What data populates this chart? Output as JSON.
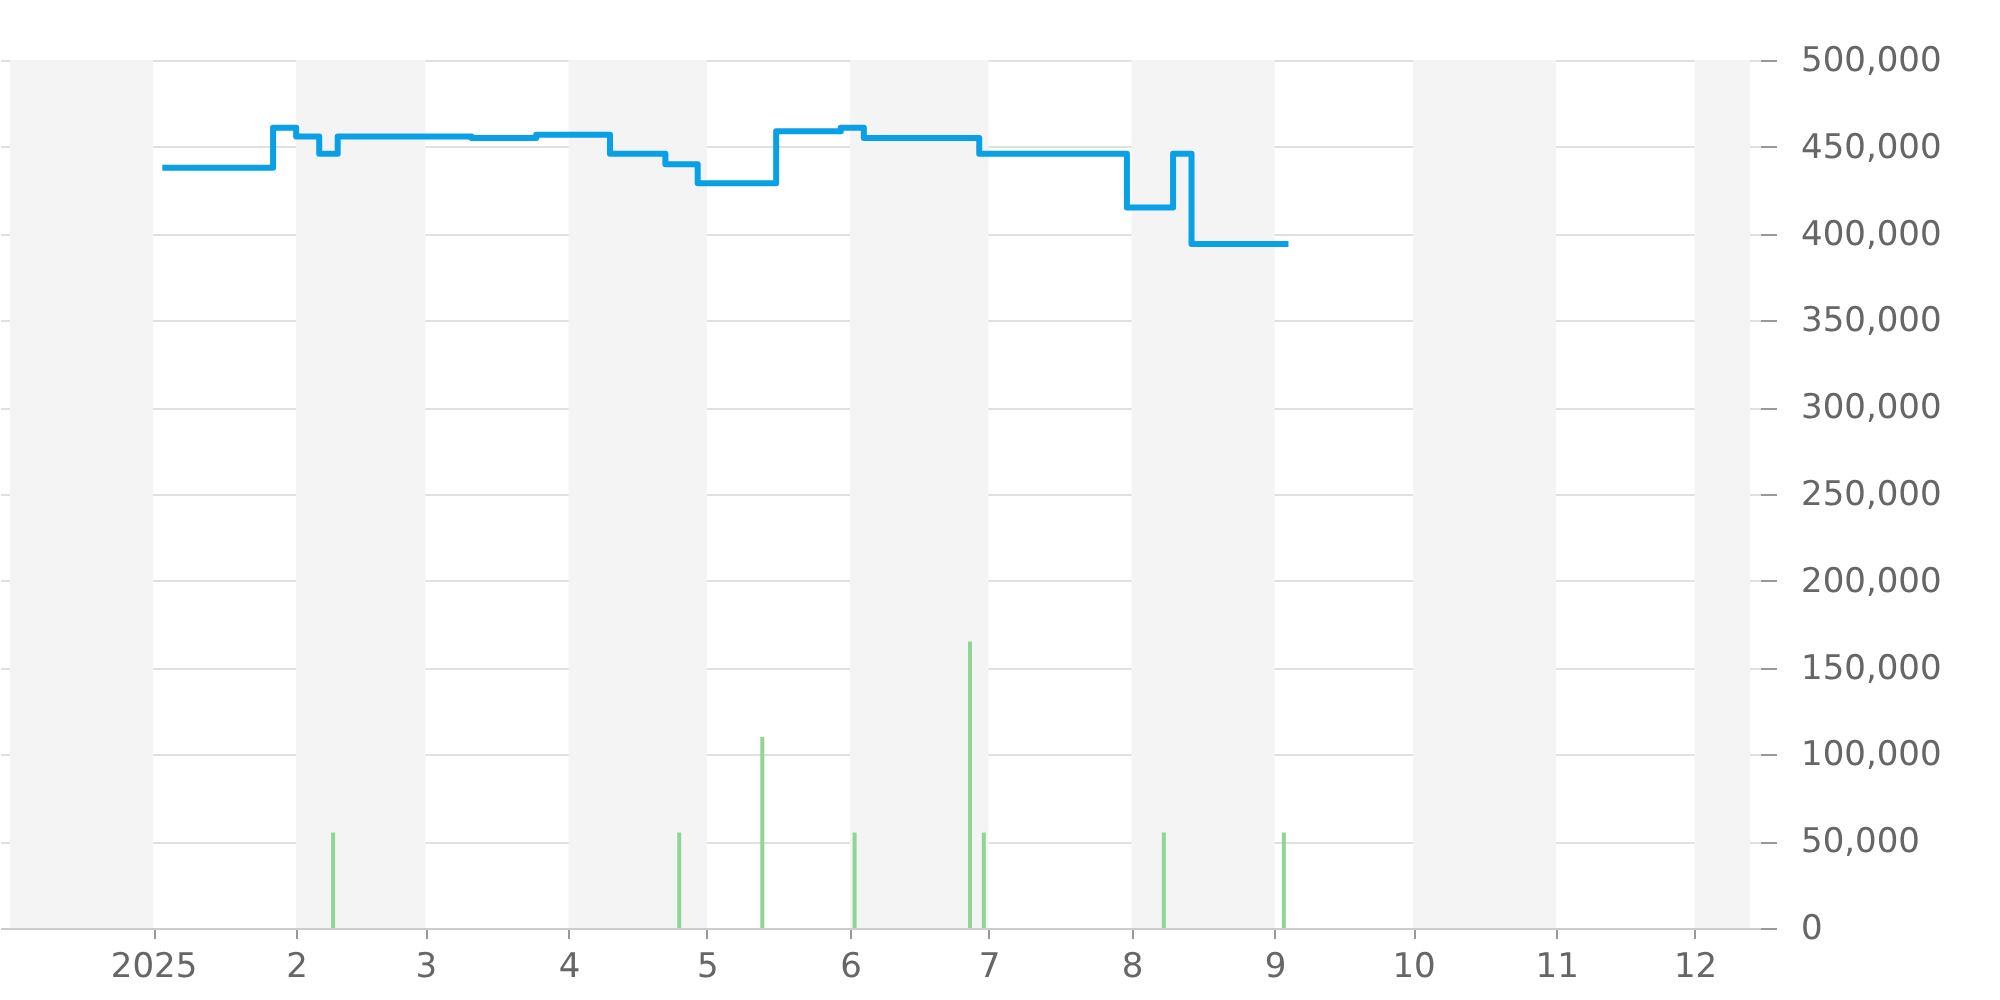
{
  "chart_data": {
    "type": "step",
    "xlim": [
      "2024-12-01",
      "2025-12-13"
    ],
    "xticks": [
      {
        "value": "2025-01-01",
        "label": "2025"
      },
      {
        "value": "2025-02-01",
        "label": "2"
      },
      {
        "value": "2025-03-01",
        "label": "3"
      },
      {
        "value": "2025-04-01",
        "label": "4"
      },
      {
        "value": "2025-05-01",
        "label": "5"
      },
      {
        "value": "2025-06-01",
        "label": "6"
      },
      {
        "value": "2025-07-01",
        "label": "7"
      },
      {
        "value": "2025-08-01",
        "label": "8"
      },
      {
        "value": "2025-09-01",
        "label": "9"
      },
      {
        "value": "2025-10-01",
        "label": "10"
      },
      {
        "value": "2025-11-01",
        "label": "11"
      },
      {
        "value": "2025-12-01",
        "label": "12"
      }
    ],
    "ylim": [
      0,
      500000
    ],
    "yticks": [
      {
        "value": 0,
        "label": "0"
      },
      {
        "value": 50000,
        "label": "50,000"
      },
      {
        "value": 100000,
        "label": "100,000"
      },
      {
        "value": 150000,
        "label": "150,000"
      },
      {
        "value": 200000,
        "label": "200,000"
      },
      {
        "value": 250000,
        "label": "250,000"
      },
      {
        "value": 300000,
        "label": "300,000"
      },
      {
        "value": 350000,
        "label": "350,000"
      },
      {
        "value": 400000,
        "label": "400,000"
      },
      {
        "value": 450000,
        "label": "450,000"
      },
      {
        "value": 500000,
        "label": "500,000"
      }
    ],
    "grid": "y",
    "series": [
      {
        "type": "bar",
        "color": "#8fd694",
        "x": [
          "2025-02-09",
          "2025-04-25",
          "2025-05-13",
          "2025-06-02",
          "2025-06-27",
          "2025-06-30",
          "2025-08-08",
          "2025-09-03"
        ],
        "values": [
          55000,
          55000,
          110000,
          55000,
          165000,
          55000,
          55000,
          55000
        ]
      },
      {
        "color": "#0aa0e6",
        "x": [
          "2025-01-03",
          "2025-01-27",
          "2025-02-01",
          "2025-02-06",
          "2025-02-10",
          "2025-03-11",
          "2025-03-25",
          "2025-04-10",
          "2025-04-22",
          "2025-04-29",
          "2025-05-16",
          "2025-05-30",
          "2025-06-04",
          "2025-06-29",
          "2025-07-31",
          "2025-08-10",
          "2025-08-14",
          "2025-09-04"
        ],
        "values": [
          438000,
          461000,
          456000,
          446000,
          456000,
          455000,
          457000,
          446000,
          440000,
          429000,
          459000,
          461000,
          455000,
          446000,
          415000,
          446000,
          394000,
          394000
        ]
      }
    ],
    "bands": [
      {
        "axis": "x",
        "from": "2024-12-01",
        "to": "2025-01-01",
        "color": "#f4f4f4"
      },
      {
        "axis": "x",
        "from": "2025-02-01",
        "to": "2025-03-01",
        "color": "#f4f4f4"
      },
      {
        "axis": "x",
        "from": "2025-04-01",
        "to": "2025-05-01",
        "color": "#f4f4f4"
      },
      {
        "axis": "x",
        "from": "2025-06-01",
        "to": "2025-07-01",
        "color": "#f4f4f4"
      },
      {
        "axis": "x",
        "from": "2025-08-01",
        "to": "2025-09-01",
        "color": "#f4f4f4"
      },
      {
        "axis": "x",
        "from": "2025-10-01",
        "to": "2025-11-01",
        "color": "#f4f4f4"
      },
      {
        "axis": "x",
        "from": "2025-12-01",
        "to": "2025-12-13",
        "color": "#f4f4f4"
      }
    ]
  }
}
